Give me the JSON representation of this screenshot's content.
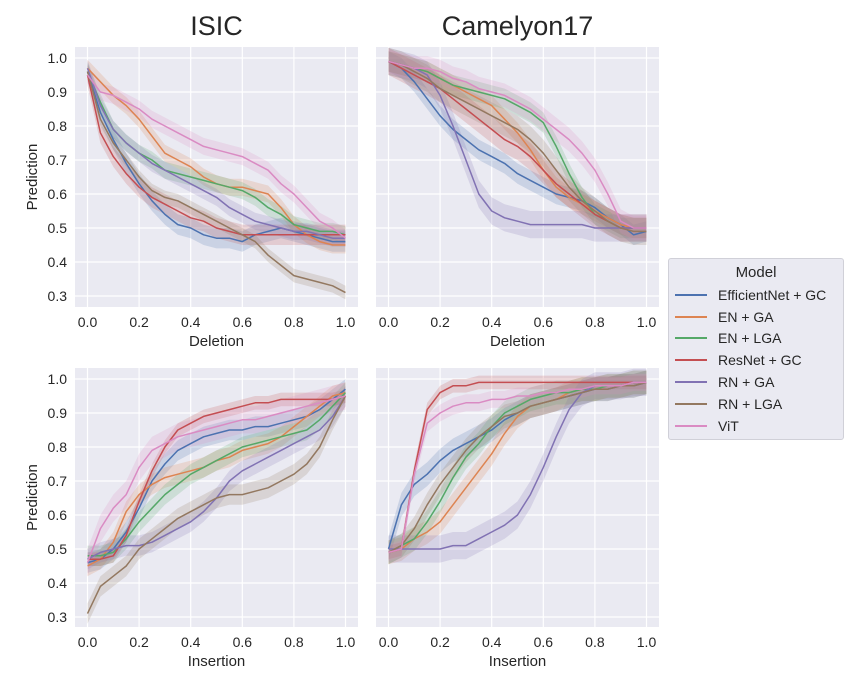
{
  "chart_data": {
    "type": "line",
    "series_names": [
      "EfficientNet + GC",
      "EN + GA",
      "EN + LGA",
      "ResNet + GC",
      "RN + GA",
      "RN + LGA",
      "ViT"
    ],
    "colors": [
      "#4c72b0",
      "#dd8452",
      "#55a868",
      "#c44e52",
      "#8172b3",
      "#937860",
      "#da8bc3"
    ],
    "background": "#eaeaf2",
    "legend": {
      "title": "Model",
      "placement": "right"
    },
    "x_grid": [
      0,
      0.05,
      0.1,
      0.15,
      0.2,
      0.25,
      0.3,
      0.35,
      0.4,
      0.45,
      0.5,
      0.55,
      0.6,
      0.65,
      0.7,
      0.75,
      0.8,
      0.85,
      0.9,
      0.95,
      1.0
    ],
    "panels": [
      {
        "title": "ISIC",
        "xlabel": "Deletion",
        "ylabel": "Prediction",
        "xlim": [
          0,
          1
        ],
        "ylim": [
          0.28,
          1.03
        ],
        "xticks": [
          "0.0",
          "0.2",
          "0.4",
          "0.6",
          "0.8",
          "1.0"
        ],
        "yticks": [
          "0.3",
          "0.4",
          "0.5",
          "0.6",
          "0.7",
          "0.8",
          "0.9",
          "1.0"
        ],
        "series": [
          {
            "name": "EfficientNet + GC",
            "ci": 0.03,
            "values": [
              0.96,
              0.84,
              0.76,
              0.69,
              0.63,
              0.58,
              0.54,
              0.51,
              0.5,
              0.48,
              0.47,
              0.47,
              0.46,
              0.48,
              0.49,
              0.5,
              0.49,
              0.48,
              0.47,
              0.46,
              0.46
            ]
          },
          {
            "name": "EN + GA",
            "ci": 0.025,
            "values": [
              0.97,
              0.93,
              0.89,
              0.86,
              0.82,
              0.77,
              0.72,
              0.7,
              0.68,
              0.65,
              0.63,
              0.62,
              0.62,
              0.61,
              0.6,
              0.56,
              0.51,
              0.48,
              0.46,
              0.45,
              0.45
            ]
          },
          {
            "name": "EN + LGA",
            "ci": 0.025,
            "values": [
              0.96,
              0.87,
              0.79,
              0.75,
              0.72,
              0.7,
              0.67,
              0.66,
              0.65,
              0.64,
              0.63,
              0.62,
              0.61,
              0.59,
              0.56,
              0.54,
              0.51,
              0.5,
              0.49,
              0.49,
              0.48
            ]
          },
          {
            "name": "ResNet + GC",
            "ci": 0.03,
            "values": [
              0.95,
              0.78,
              0.71,
              0.66,
              0.62,
              0.59,
              0.57,
              0.55,
              0.53,
              0.52,
              0.5,
              0.49,
              0.48,
              0.48,
              0.48,
              0.48,
              0.48,
              0.48,
              0.48,
              0.48,
              0.48
            ]
          },
          {
            "name": "RN + GA",
            "ci": 0.025,
            "values": [
              0.97,
              0.86,
              0.79,
              0.75,
              0.72,
              0.69,
              0.67,
              0.65,
              0.63,
              0.61,
              0.59,
              0.56,
              0.54,
              0.52,
              0.51,
              0.5,
              0.49,
              0.49,
              0.48,
              0.47,
              0.47
            ]
          },
          {
            "name": "RN + LGA",
            "ci": 0.02,
            "values": [
              0.96,
              0.82,
              0.75,
              0.7,
              0.65,
              0.61,
              0.59,
              0.58,
              0.56,
              0.54,
              0.52,
              0.5,
              0.48,
              0.46,
              0.42,
              0.39,
              0.36,
              0.35,
              0.34,
              0.33,
              0.31
            ]
          },
          {
            "name": "ViT",
            "ci": 0.025,
            "values": [
              0.95,
              0.9,
              0.89,
              0.87,
              0.85,
              0.82,
              0.8,
              0.78,
              0.76,
              0.74,
              0.73,
              0.72,
              0.71,
              0.69,
              0.67,
              0.63,
              0.6,
              0.56,
              0.52,
              0.5,
              0.47
            ]
          }
        ]
      },
      {
        "title": "Camelyon17",
        "xlabel": "Deletion",
        "ylabel": "",
        "xlim": [
          0,
          1
        ],
        "ylim": [
          0.28,
          1.03
        ],
        "xticks": [
          "0.0",
          "0.2",
          "0.4",
          "0.6",
          "0.8",
          "1.0"
        ],
        "yticks": [],
        "series": [
          {
            "name": "EfficientNet + GC",
            "ci": 0.03,
            "values": [
              0.99,
              0.97,
              0.93,
              0.88,
              0.83,
              0.79,
              0.76,
              0.73,
              0.71,
              0.69,
              0.66,
              0.64,
              0.62,
              0.6,
              0.59,
              0.58,
              0.56,
              0.53,
              0.51,
              0.48,
              0.49
            ]
          },
          {
            "name": "EN + GA",
            "ci": 0.03,
            "values": [
              0.99,
              0.98,
              0.97,
              0.96,
              0.94,
              0.92,
              0.9,
              0.88,
              0.86,
              0.82,
              0.78,
              0.73,
              0.67,
              0.62,
              0.59,
              0.57,
              0.55,
              0.53,
              0.51,
              0.5,
              0.5
            ]
          },
          {
            "name": "EN + LGA",
            "ci": 0.03,
            "values": [
              0.99,
              0.98,
              0.97,
              0.96,
              0.94,
              0.92,
              0.91,
              0.9,
              0.89,
              0.88,
              0.86,
              0.84,
              0.81,
              0.74,
              0.66,
              0.59,
              0.54,
              0.52,
              0.5,
              0.5,
              0.5
            ]
          },
          {
            "name": "ResNet + GC",
            "ci": 0.04,
            "values": [
              0.99,
              0.97,
              0.95,
              0.93,
              0.91,
              0.88,
              0.85,
              0.82,
              0.79,
              0.76,
              0.74,
              0.71,
              0.67,
              0.63,
              0.6,
              0.57,
              0.54,
              0.52,
              0.5,
              0.5,
              0.5
            ]
          },
          {
            "name": "RN + GA",
            "ci": 0.04,
            "values": [
              0.99,
              0.98,
              0.97,
              0.95,
              0.89,
              0.8,
              0.7,
              0.6,
              0.55,
              0.53,
              0.52,
              0.51,
              0.51,
              0.51,
              0.51,
              0.51,
              0.5,
              0.5,
              0.5,
              0.5,
              0.5
            ]
          },
          {
            "name": "RN + LGA",
            "ci": 0.04,
            "values": [
              0.99,
              0.98,
              0.96,
              0.94,
              0.91,
              0.89,
              0.87,
              0.85,
              0.83,
              0.81,
              0.79,
              0.76,
              0.72,
              0.67,
              0.62,
              0.58,
              0.55,
              0.52,
              0.5,
              0.49,
              0.49
            ]
          },
          {
            "name": "ViT",
            "ci": 0.035,
            "values": [
              0.99,
              0.98,
              0.97,
              0.97,
              0.96,
              0.94,
              0.93,
              0.91,
              0.9,
              0.89,
              0.87,
              0.85,
              0.82,
              0.79,
              0.76,
              0.72,
              0.67,
              0.6,
              0.52,
              0.5,
              0.5
            ]
          }
        ]
      },
      {
        "title": "",
        "xlabel": "Insertion",
        "ylabel": "Prediction",
        "xlim": [
          0,
          1
        ],
        "ylim": [
          0.28,
          1.03
        ],
        "xticks": [
          "0.0",
          "0.2",
          "0.4",
          "0.6",
          "0.8",
          "1.0"
        ],
        "yticks": [
          "0.3",
          "0.4",
          "0.5",
          "0.6",
          "0.7",
          "0.8",
          "0.9",
          "1.0"
        ],
        "series": [
          {
            "name": "EfficientNet + GC",
            "ci": 0.03,
            "values": [
              0.46,
              0.47,
              0.5,
              0.55,
              0.62,
              0.7,
              0.75,
              0.79,
              0.81,
              0.83,
              0.84,
              0.85,
              0.85,
              0.86,
              0.86,
              0.87,
              0.88,
              0.89,
              0.91,
              0.94,
              0.97
            ]
          },
          {
            "name": "EN + GA",
            "ci": 0.03,
            "values": [
              0.45,
              0.47,
              0.52,
              0.61,
              0.66,
              0.69,
              0.71,
              0.72,
              0.73,
              0.74,
              0.76,
              0.77,
              0.79,
              0.8,
              0.81,
              0.83,
              0.86,
              0.89,
              0.92,
              0.95,
              0.96
            ]
          },
          {
            "name": "EN + LGA",
            "ci": 0.03,
            "values": [
              0.48,
              0.48,
              0.49,
              0.53,
              0.58,
              0.62,
              0.66,
              0.69,
              0.72,
              0.74,
              0.76,
              0.78,
              0.8,
              0.81,
              0.82,
              0.83,
              0.84,
              0.85,
              0.88,
              0.92,
              0.96
            ]
          },
          {
            "name": "ResNet + GC",
            "ci": 0.02,
            "values": [
              0.47,
              0.47,
              0.48,
              0.54,
              0.64,
              0.73,
              0.8,
              0.85,
              0.87,
              0.89,
              0.9,
              0.91,
              0.92,
              0.93,
              0.93,
              0.94,
              0.94,
              0.94,
              0.94,
              0.94,
              0.95
            ]
          },
          {
            "name": "RN + GA",
            "ci": 0.03,
            "values": [
              0.47,
              0.49,
              0.5,
              0.51,
              0.51,
              0.52,
              0.54,
              0.56,
              0.58,
              0.61,
              0.65,
              0.7,
              0.73,
              0.75,
              0.77,
              0.79,
              0.81,
              0.83,
              0.85,
              0.89,
              0.95
            ]
          },
          {
            "name": "RN + LGA",
            "ci": 0.03,
            "values": [
              0.31,
              0.39,
              0.42,
              0.45,
              0.5,
              0.53,
              0.56,
              0.59,
              0.61,
              0.63,
              0.65,
              0.66,
              0.66,
              0.67,
              0.68,
              0.7,
              0.72,
              0.75,
              0.8,
              0.88,
              0.95
            ]
          },
          {
            "name": "ViT",
            "ci": 0.04,
            "values": [
              0.46,
              0.56,
              0.62,
              0.66,
              0.74,
              0.79,
              0.81,
              0.83,
              0.84,
              0.85,
              0.86,
              0.87,
              0.88,
              0.88,
              0.89,
              0.9,
              0.91,
              0.92,
              0.93,
              0.94,
              0.95
            ]
          }
        ]
      },
      {
        "title": "",
        "xlabel": "Insertion",
        "ylabel": "",
        "xlim": [
          0,
          1
        ],
        "ylim": [
          0.28,
          1.03
        ],
        "xticks": [
          "0.0",
          "0.2",
          "0.4",
          "0.6",
          "0.8",
          "1.0"
        ],
        "yticks": [],
        "series": [
          {
            "name": "EfficientNet + GC",
            "ci": 0.035,
            "values": [
              0.5,
              0.63,
              0.69,
              0.72,
              0.76,
              0.79,
              0.81,
              0.83,
              0.85,
              0.88,
              0.9,
              0.92,
              0.93,
              0.94,
              0.95,
              0.96,
              0.97,
              0.97,
              0.98,
              0.98,
              0.99
            ]
          },
          {
            "name": "EN + GA",
            "ci": 0.035,
            "values": [
              0.49,
              0.5,
              0.53,
              0.55,
              0.58,
              0.63,
              0.68,
              0.73,
              0.78,
              0.84,
              0.89,
              0.92,
              0.93,
              0.94,
              0.96,
              0.97,
              0.97,
              0.98,
              0.98,
              0.99,
              0.99
            ]
          },
          {
            "name": "EN + LGA",
            "ci": 0.035,
            "values": [
              0.49,
              0.51,
              0.53,
              0.58,
              0.64,
              0.71,
              0.77,
              0.81,
              0.86,
              0.9,
              0.92,
              0.94,
              0.95,
              0.96,
              0.96,
              0.97,
              0.97,
              0.98,
              0.98,
              0.99,
              0.99
            ]
          },
          {
            "name": "ResNet + GC",
            "ci": 0.02,
            "values": [
              0.49,
              0.5,
              0.73,
              0.91,
              0.96,
              0.98,
              0.98,
              0.99,
              0.99,
              0.99,
              0.99,
              0.99,
              0.99,
              0.99,
              0.99,
              0.99,
              0.99,
              0.99,
              0.99,
              0.99,
              0.99
            ]
          },
          {
            "name": "RN + GA",
            "ci": 0.04,
            "values": [
              0.5,
              0.5,
              0.5,
              0.5,
              0.5,
              0.51,
              0.51,
              0.53,
              0.55,
              0.57,
              0.6,
              0.66,
              0.74,
              0.83,
              0.91,
              0.96,
              0.98,
              0.98,
              0.98,
              0.99,
              0.99
            ]
          },
          {
            "name": "RN + LGA",
            "ci": 0.035,
            "values": [
              0.49,
              0.51,
              0.56,
              0.63,
              0.69,
              0.74,
              0.79,
              0.83,
              0.86,
              0.89,
              0.9,
              0.92,
              0.93,
              0.94,
              0.95,
              0.96,
              0.97,
              0.97,
              0.98,
              0.98,
              0.99
            ]
          },
          {
            "name": "ViT",
            "ci": 0.025,
            "values": [
              0.49,
              0.5,
              0.72,
              0.87,
              0.9,
              0.92,
              0.93,
              0.93,
              0.94,
              0.94,
              0.95,
              0.95,
              0.96,
              0.96,
              0.97,
              0.97,
              0.98,
              0.98,
              0.98,
              0.99,
              0.99
            ]
          }
        ]
      }
    ]
  }
}
